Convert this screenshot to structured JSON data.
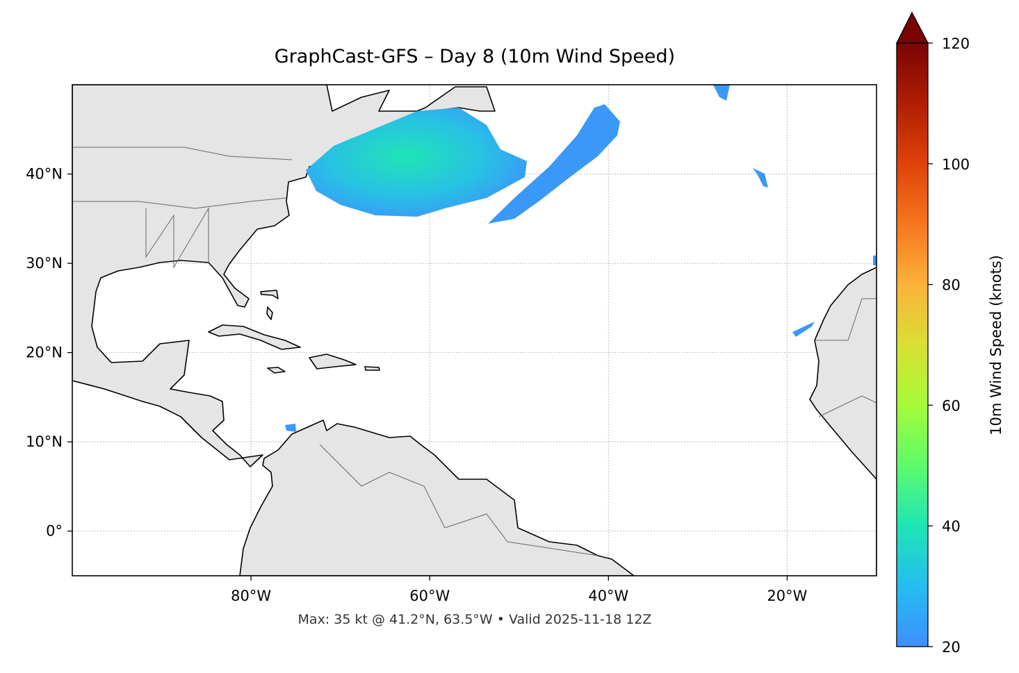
{
  "title": "GraphCast-GFS – Day 8 (10m Wind Speed)",
  "map": {
    "lonlim": [
      -100,
      -10
    ],
    "latlim": [
      -5,
      50
    ],
    "lon_ticks": [
      {
        "value": -80,
        "label": "80°W"
      },
      {
        "value": -60,
        "label": "60°W"
      },
      {
        "value": -40,
        "label": "40°W"
      },
      {
        "value": -20,
        "label": "20°W"
      }
    ],
    "lat_ticks": [
      {
        "value": 0,
        "label": "0°"
      },
      {
        "value": 10,
        "label": "10°N"
      },
      {
        "value": 20,
        "label": "20°N"
      },
      {
        "value": 30,
        "label": "30°N"
      },
      {
        "value": 40,
        "label": "40°N"
      }
    ],
    "grid": true
  },
  "colorbar": {
    "label": "10m Wind Speed (knots)",
    "lim": [
      20,
      120
    ],
    "ticks": [
      20,
      40,
      60,
      80,
      100,
      120
    ]
  },
  "footer": "Max: 35 kt @ 41.2°N, 63.5°W • Valid 2025-11-18 12Z"
}
